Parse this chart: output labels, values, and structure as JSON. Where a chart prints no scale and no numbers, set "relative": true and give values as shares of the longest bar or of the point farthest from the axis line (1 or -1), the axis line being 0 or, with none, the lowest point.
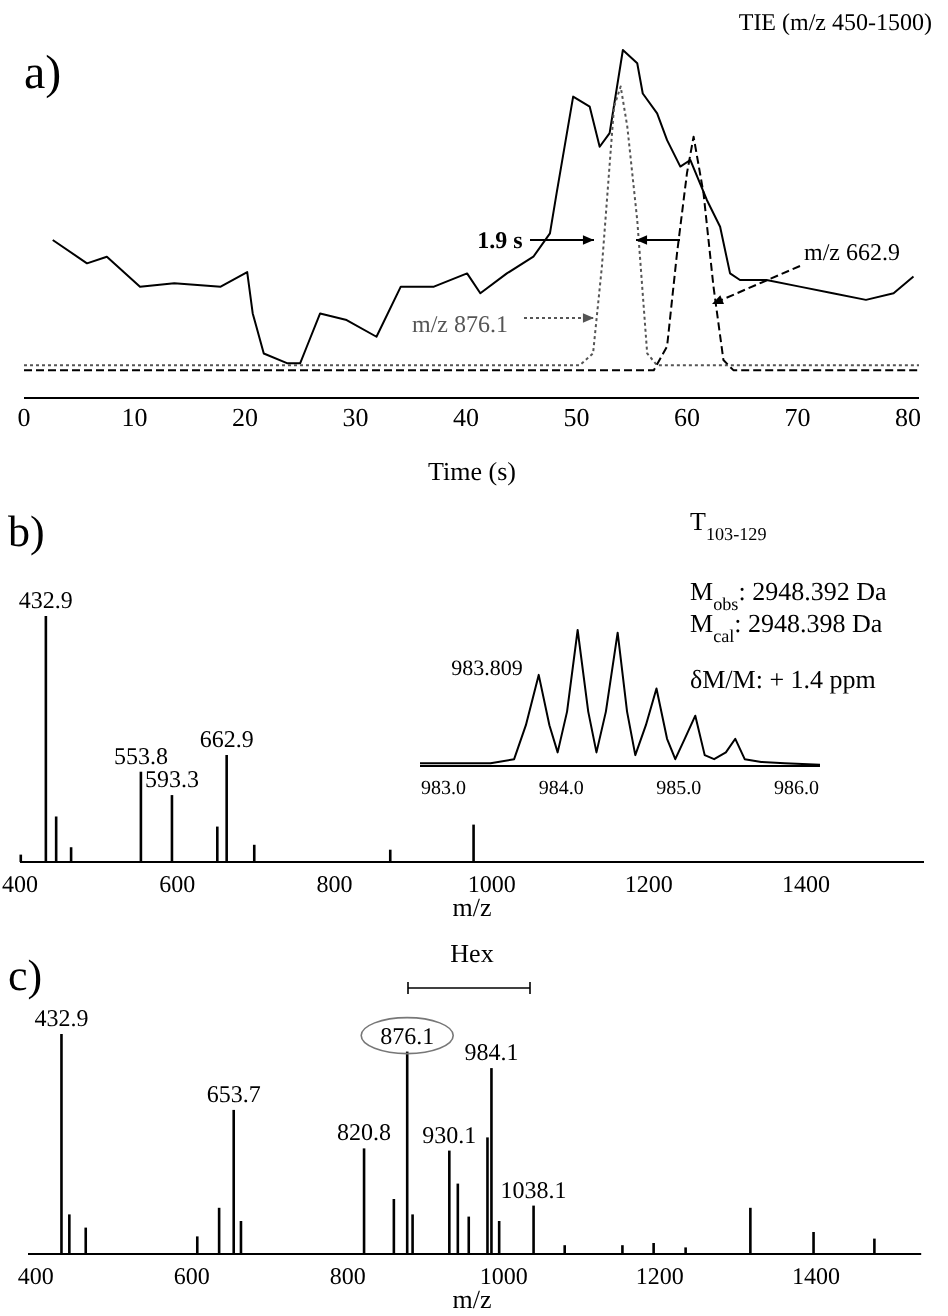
{
  "chart_data": [
    {
      "type": "line",
      "title": "a)",
      "xlabel": "Time (s)",
      "relative": true,
      "xlim": [
        0,
        81
      ],
      "xticks": [
        0,
        10,
        20,
        30,
        40,
        50,
        60,
        70,
        80
      ],
      "series": [
        {
          "color": "#000000",
          "x": [
            2.6,
            5.7,
            7.5,
            10.5,
            13.6,
            17.8,
            20.2,
            20.7,
            21.7,
            23.8,
            25.0,
            25.6,
            26.8,
            29.2,
            31.9,
            34.1,
            37.1,
            40.1,
            41.3,
            43.7,
            46.1,
            47.6,
            48.2,
            49.7,
            51.2,
            52.1,
            53.0,
            54.2,
            55.5,
            56.0,
            57.3,
            58.2,
            59.4,
            60.3,
            61.8,
            63.0,
            63.9,
            64.8,
            67.2,
            70.2,
            73.2,
            76.2,
            78.7,
            80.5
          ],
          "values": [
            0.454,
            0.387,
            0.406,
            0.32,
            0.33,
            0.32,
            0.362,
            0.243,
            0.128,
            0.1,
            0.1,
            0.148,
            0.243,
            0.224,
            0.176,
            0.32,
            0.32,
            0.358,
            0.301,
            0.358,
            0.406,
            0.473,
            0.588,
            0.866,
            0.837,
            0.722,
            0.761,
            1.0,
            0.962,
            0.875,
            0.818,
            0.741,
            0.665,
            0.684,
            0.569,
            0.492,
            0.358,
            0.339,
            0.339,
            0.32,
            0.301,
            0.282,
            0.301,
            0.349
          ]
        },
        {
          "name": "m/z 876.1",
          "color": "#555555",
          "line_style": "dotted",
          "x": [
            0,
            34,
            50.3,
            51.5,
            52.3,
            53.4,
            54.0,
            54.6,
            55.5,
            56.4,
            57.3,
            81
          ],
          "values": [
            0.094,
            0.094,
            0.094,
            0.128,
            0.377,
            0.837,
            0.895,
            0.78,
            0.511,
            0.128,
            0.094,
            0.094
          ]
        },
        {
          "name": "m/z 662.9",
          "color": "#000000",
          "line_style": "dashed",
          "x": [
            0,
            57.0,
            58.2,
            59.1,
            60.0,
            60.6,
            61.5,
            62.4,
            63.3,
            64.2,
            81
          ],
          "values": [
            0.08,
            0.08,
            0.148,
            0.416,
            0.646,
            0.751,
            0.588,
            0.32,
            0.109,
            0.08,
            0.08
          ]
        }
      ],
      "annotations": [
        "1.9 s",
        "TIE (m/z 450-1500)"
      ]
    },
    {
      "type": "bar",
      "title": "b)",
      "xlabel": "m/z",
      "relative": true,
      "color": "#000000",
      "xlim": [
        400,
        1550
      ],
      "xticks": [
        400,
        600,
        800,
        1000,
        1200,
        1400
      ],
      "x": [
        401,
        432.9,
        446,
        465,
        553.8,
        593.3,
        651,
        662.9,
        698,
        871,
        977
      ],
      "values": [
        0.03,
        1,
        0.185,
        0.06,
        0.367,
        0.272,
        0.144,
        0.435,
        0.07,
        0.05,
        0.152
      ],
      "annotations": [
        {
          "text": "432.9",
          "x": 432.9,
          "y": 1
        },
        {
          "text": "553.8",
          "x": 553.8,
          "y": 0.367
        },
        {
          "text": "593.3",
          "x": 593.3,
          "y": 0.272
        },
        {
          "text": "662.9",
          "x": 662.9,
          "y": 0.435
        },
        "T$_{103-129}$",
        "M$_{obs}$: 2948.392 Da",
        "M$_{cal}$: 2948.398 Da",
        "δM/M: + 1.4 ppm"
      ]
    },
    {
      "type": "line",
      "relative": true,
      "xlim": [
        982.8,
        986.2
      ],
      "xticks": [
        {
          "value": 983,
          "label": "983.0"
        },
        {
          "value": 984,
          "label": "984.0"
        },
        {
          "value": 985,
          "label": "985.0"
        },
        {
          "value": 986,
          "label": "986.0"
        }
      ],
      "series": [
        {
          "color": "#000000",
          "x": [
            982.8,
            983.4,
            983.6,
            983.7,
            983.809,
            983.9,
            983.97,
            984.05,
            984.14,
            984.23,
            984.3,
            984.38,
            984.48,
            984.56,
            984.63,
            984.72,
            984.81,
            984.9,
            984.97,
            985.05,
            985.14,
            985.22,
            985.3,
            985.4,
            985.48,
            985.56,
            985.7,
            985.9,
            986.2
          ],
          "values": [
            0.02,
            0.02,
            0.05,
            0.3,
            0.67,
            0.3,
            0.1,
            0.4,
            1.0,
            0.4,
            0.1,
            0.4,
            0.98,
            0.4,
            0.08,
            0.3,
            0.57,
            0.2,
            0.05,
            0.2,
            0.37,
            0.08,
            0.05,
            0.1,
            0.2,
            0.05,
            0.03,
            0.02,
            0.01
          ]
        }
      ],
      "annotations": [
        {
          "text": "983.809",
          "x": 983.809,
          "y": 0.67
        }
      ]
    },
    {
      "type": "bar",
      "title": "c)",
      "xlabel": "m/z",
      "relative": true,
      "color": "#000000",
      "xlim": [
        390,
        1535
      ],
      "xticks": [
        400,
        600,
        800,
        1000,
        1200,
        1400
      ],
      "x": [
        432.9,
        443,
        464,
        607,
        635,
        653.7,
        663,
        820.8,
        859,
        876.1,
        883,
        930.1,
        941,
        955,
        979,
        984.1,
        994,
        1038.1,
        1078,
        1152,
        1192,
        1233,
        1316,
        1397,
        1475
      ],
      "values": [
        1,
        0.18,
        0.12,
        0.08,
        0.21,
        0.655,
        0.15,
        0.48,
        0.25,
        0.92,
        0.18,
        0.47,
        0.32,
        0.17,
        0.53,
        0.845,
        0.15,
        0.22,
        0.04,
        0.04,
        0.05,
        0.03,
        0.21,
        0.1,
        0.07
      ],
      "annotations": [
        {
          "text": "432.9",
          "x": 432.9,
          "y": 1
        },
        {
          "text": "653.7",
          "x": 653.7,
          "y": 0.655
        },
        {
          "text": "820.8",
          "x": 820.8,
          "y": 0.48
        },
        {
          "text": "876.1",
          "x": 876.1,
          "y": 0.92
        },
        {
          "text": "930.1",
          "x": 930.1,
          "y": 0.47
        },
        {
          "text": "984.1",
          "x": 984.1,
          "y": 0.845
        },
        {
          "text": "1038.1",
          "x": 1038.1,
          "y": 0.22
        },
        "Hex"
      ]
    }
  ]
}
